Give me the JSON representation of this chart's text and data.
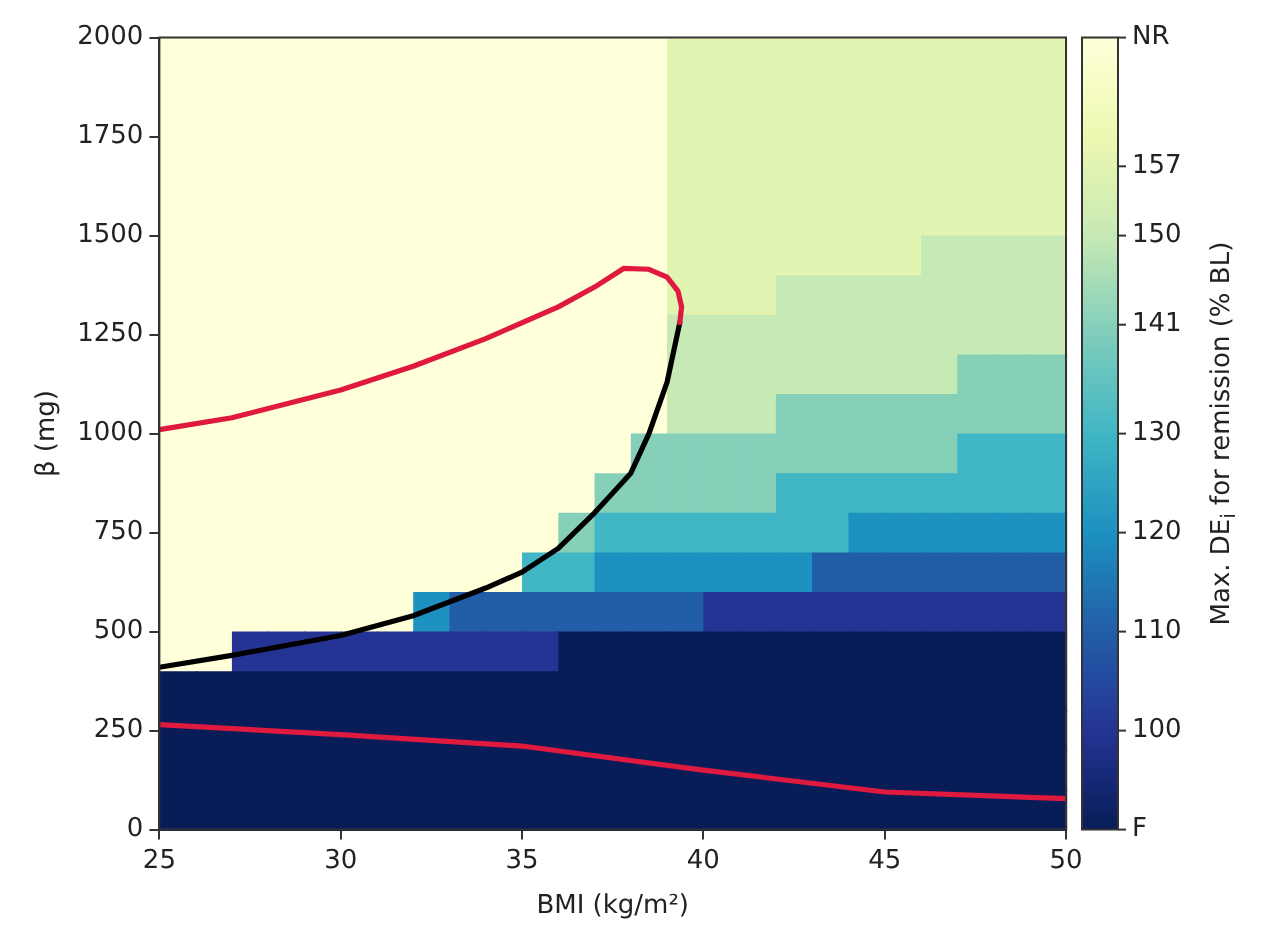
{
  "chart_data": {
    "type": "heatmap",
    "xlabel": "BMI (kg/m²)",
    "ylabel": "β (mg)",
    "clabel": "Max. DE$_{i}$ for remission (% BL)",
    "xlim": [
      25,
      50
    ],
    "xticks": [
      25,
      30,
      35,
      40,
      45,
      50
    ],
    "ylim": [
      0,
      2000
    ],
    "yticks": [
      0,
      250,
      500,
      750,
      1000,
      1250,
      1500,
      1750,
      2000
    ],
    "clim": [
      90,
      170
    ],
    "cticks": [
      {
        "value": 90,
        "label": "F"
      },
      100,
      110,
      120,
      130,
      141,
      150,
      157,
      {
        "value": 170,
        "label": "NR"
      }
    ],
    "x": [
      25.5,
      26.5,
      27.5,
      28.5,
      29.5,
      30.5,
      31.5,
      32.5,
      33.5,
      34.5,
      35.5,
      36.5,
      37.5,
      38.5,
      39.5,
      40.5,
      41.5,
      42.5,
      43.5,
      44.5,
      45.5,
      46.5,
      47.5,
      48.5,
      49.5
    ],
    "y": [
      1950,
      1850,
      1750,
      1650,
      1550,
      1450,
      1350,
      1250,
      1150,
      1050,
      950,
      850,
      750,
      650,
      550,
      450,
      350,
      250,
      150,
      50
    ],
    "cells": [
      [
        170,
        170,
        170,
        170,
        170,
        170,
        170,
        170,
        170,
        170,
        170,
        170,
        170,
        170,
        157,
        157,
        157,
        157,
        157,
        157,
        157,
        157,
        157,
        157,
        157
      ],
      [
        170,
        170,
        170,
        170,
        170,
        170,
        170,
        170,
        170,
        170,
        170,
        170,
        170,
        170,
        157,
        157,
        157,
        157,
        157,
        157,
        157,
        157,
        157,
        157,
        157
      ],
      [
        170,
        170,
        170,
        170,
        170,
        170,
        170,
        170,
        170,
        170,
        170,
        170,
        170,
        170,
        157,
        157,
        157,
        157,
        157,
        157,
        157,
        157,
        157,
        157,
        157
      ],
      [
        170,
        170,
        170,
        170,
        170,
        170,
        170,
        170,
        170,
        170,
        170,
        170,
        170,
        170,
        157,
        157,
        157,
        157,
        157,
        157,
        157,
        157,
        157,
        157,
        157
      ],
      [
        170,
        170,
        170,
        170,
        170,
        170,
        170,
        170,
        170,
        170,
        170,
        170,
        170,
        170,
        157,
        157,
        157,
        157,
        157,
        157,
        157,
        157,
        157,
        157,
        157
      ],
      [
        170,
        170,
        170,
        170,
        170,
        170,
        170,
        170,
        170,
        170,
        170,
        170,
        170,
        170,
        157,
        157,
        157,
        157,
        157,
        157,
        157,
        150,
        150,
        150,
        150
      ],
      [
        170,
        170,
        170,
        170,
        170,
        170,
        170,
        170,
        170,
        170,
        170,
        170,
        170,
        170,
        157,
        157,
        157,
        150,
        150,
        150,
        150,
        150,
        150,
        150,
        150
      ],
      [
        170,
        170,
        170,
        170,
        170,
        170,
        170,
        170,
        170,
        170,
        170,
        170,
        170,
        170,
        150,
        150,
        150,
        150,
        150,
        150,
        150,
        150,
        150,
        150,
        150
      ],
      [
        170,
        170,
        170,
        170,
        170,
        170,
        170,
        170,
        170,
        170,
        170,
        170,
        170,
        170,
        150,
        150,
        150,
        150,
        150,
        150,
        150,
        150,
        141,
        141,
        141
      ],
      [
        170,
        170,
        170,
        170,
        170,
        170,
        170,
        170,
        170,
        170,
        170,
        170,
        170,
        170,
        150,
        150,
        150,
        141,
        141,
        141,
        141,
        141,
        141,
        141,
        141
      ],
      [
        170,
        170,
        170,
        170,
        170,
        170,
        170,
        170,
        170,
        170,
        170,
        170,
        170,
        141,
        141,
        141,
        141,
        141,
        141,
        141,
        141,
        141,
        130,
        130,
        130
      ],
      [
        170,
        170,
        170,
        170,
        170,
        170,
        170,
        170,
        170,
        170,
        170,
        170,
        141,
        141,
        141,
        141,
        141,
        130,
        130,
        130,
        130,
        130,
        130,
        130,
        130
      ],
      [
        170,
        170,
        170,
        170,
        170,
        170,
        170,
        170,
        170,
        170,
        170,
        141,
        130,
        130,
        130,
        130,
        130,
        130,
        130,
        120,
        120,
        120,
        120,
        120,
        120
      ],
      [
        170,
        170,
        170,
        170,
        170,
        170,
        170,
        170,
        170,
        170,
        130,
        130,
        120,
        120,
        120,
        120,
        120,
        120,
        110,
        110,
        110,
        110,
        110,
        110,
        110
      ],
      [
        170,
        170,
        170,
        170,
        170,
        170,
        170,
        120,
        110,
        110,
        110,
        110,
        110,
        110,
        110,
        100,
        100,
        100,
        100,
        100,
        100,
        100,
        100,
        100,
        100
      ],
      [
        170,
        170,
        100,
        100,
        100,
        100,
        100,
        100,
        100,
        100,
        100,
        90,
        90,
        90,
        90,
        90,
        90,
        90,
        90,
        90,
        90,
        90,
        90,
        90,
        90
      ],
      [
        90,
        90,
        90,
        90,
        90,
        90,
        90,
        90,
        90,
        90,
        90,
        90,
        90,
        90,
        90,
        90,
        90,
        90,
        90,
        90,
        90,
        90,
        90,
        90,
        90
      ],
      [
        90,
        90,
        90,
        90,
        90,
        90,
        90,
        90,
        90,
        90,
        90,
        90,
        90,
        90,
        90,
        90,
        90,
        90,
        90,
        90,
        90,
        90,
        90,
        90,
        90
      ],
      [
        90,
        90,
        90,
        90,
        90,
        90,
        90,
        90,
        90,
        90,
        90,
        90,
        90,
        90,
        90,
        90,
        90,
        90,
        90,
        90,
        90,
        90,
        90,
        90,
        90
      ],
      [
        90,
        90,
        90,
        90,
        90,
        90,
        90,
        90,
        90,
        90,
        90,
        90,
        90,
        90,
        90,
        90,
        90,
        90,
        90,
        90,
        90,
        90,
        90,
        90,
        90
      ]
    ],
    "series": [
      {
        "type": "line",
        "color": "#e0193f",
        "x": [
          25,
          27,
          30,
          32,
          34,
          36,
          37,
          37.8,
          38.5,
          39,
          39.3,
          39.4,
          39.35
        ],
        "values": [
          1010,
          1040,
          1110,
          1170,
          1240,
          1320,
          1370,
          1417,
          1415,
          1395,
          1360,
          1320,
          1280
        ]
      },
      {
        "type": "line",
        "color": "#000000",
        "x": [
          25,
          27,
          30,
          32,
          34,
          35,
          36,
          37,
          38,
          38.5,
          39,
          39.35
        ],
        "values": [
          410,
          440,
          490,
          540,
          610,
          650,
          710,
          800,
          900,
          1000,
          1130,
          1280
        ]
      },
      {
        "type": "line",
        "color": "#e0193f",
        "x": [
          25,
          30,
          35,
          40,
          45,
          50
        ],
        "values": [
          265,
          240,
          211,
          150,
          95,
          78
        ]
      }
    ]
  }
}
